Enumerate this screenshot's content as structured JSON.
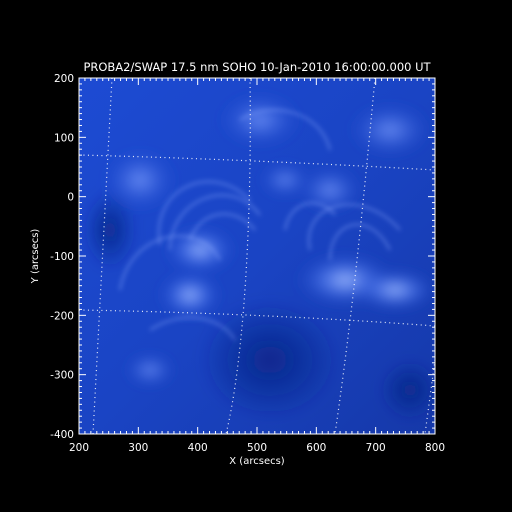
{
  "colors": {
    "background": "#000000",
    "foreground": "#ffffff",
    "image_deep": "#0a2a9c",
    "image_mid": "#1f4fd6",
    "image_bright": "#6c95ff",
    "grid": "#ffffff"
  },
  "title": "PROBA2/SWAP 17.5 nm SOHO 10-Jan-2010 16:00:00.000 UT",
  "axes": {
    "x_label": "X (arcsecs)",
    "y_label": "Y (arcsecs)",
    "x_ticks": [
      "200",
      "300",
      "400",
      "500",
      "600",
      "700",
      "800"
    ],
    "y_ticks": [
      "200",
      "100",
      "0",
      "-100",
      "-200",
      "-300",
      "-400"
    ],
    "xlim": [
      200,
      800
    ],
    "ylim": [
      -400,
      200
    ]
  },
  "grid_overlay": "heliographic dotted grid"
}
